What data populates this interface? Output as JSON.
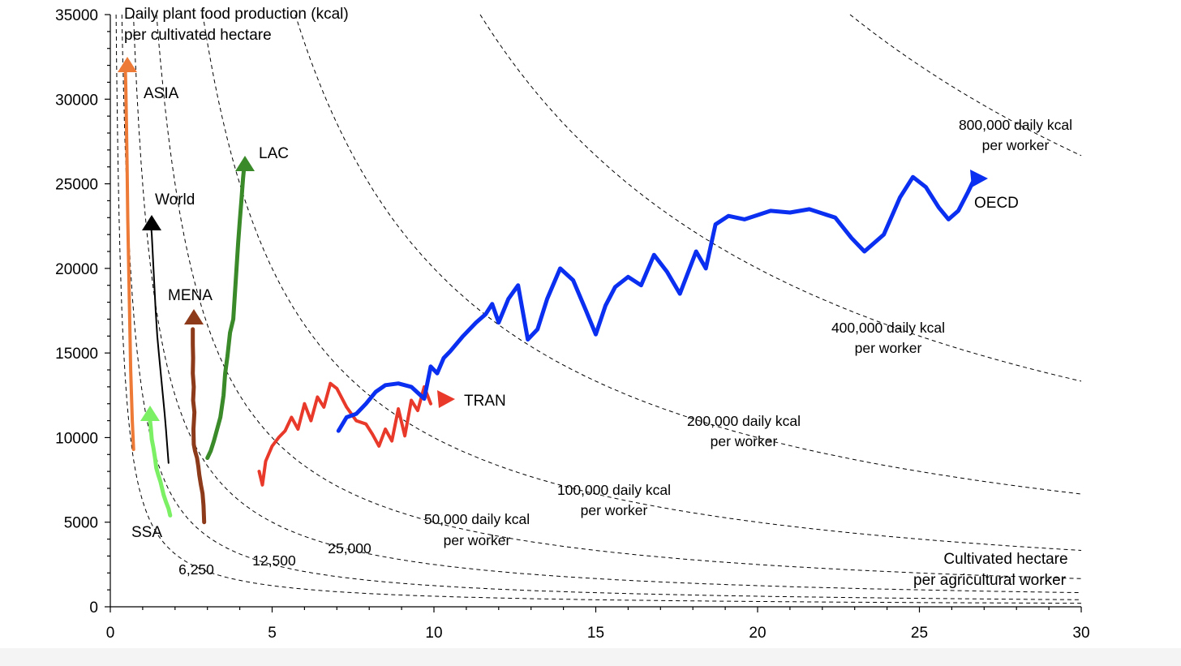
{
  "chart_data": {
    "type": "line",
    "title": "Daily plant food production (kcal)",
    "title_line2": "per cultivated hectare",
    "xlabel_line1": "Cultivated hectare",
    "xlabel_line2": "per agricultural worker",
    "xlim": [
      0,
      30
    ],
    "ylim": [
      0,
      35000
    ],
    "x_ticks": [
      0,
      5,
      10,
      15,
      20,
      25,
      30
    ],
    "y_ticks": [
      0,
      5000,
      10000,
      15000,
      20000,
      25000,
      30000,
      35000
    ],
    "x_tick_labels": [
      "0",
      "5",
      "10",
      "15",
      "20",
      "25",
      "30"
    ],
    "y_tick_labels": [
      "0",
      "5000",
      "10000",
      "15000",
      "20000",
      "25000",
      "30000",
      "35000"
    ],
    "grid": false,
    "isolines": [
      {
        "product": 6250,
        "label": "6,250"
      },
      {
        "product": 12500,
        "label": "12,500"
      },
      {
        "product": 25000,
        "label": "25,000"
      },
      {
        "product": 50000,
        "label": "50,000 daily kcal",
        "label2": "per worker"
      },
      {
        "product": 100000,
        "label": "100,000 daily kcal",
        "label2": "per worker"
      },
      {
        "product": 200000,
        "label": "200,000 daily kcal",
        "label2": "per worker"
      },
      {
        "product": 400000,
        "label": "400,000 daily kcal",
        "label2": "per worker"
      },
      {
        "product": 800000,
        "label": "800,000 daily kcal",
        "label2": "per worker"
      }
    ],
    "series": [
      {
        "name": "ASIA",
        "color": "#ee7a37",
        "points": [
          [
            0.72,
            9300
          ],
          [
            0.68,
            11000
          ],
          [
            0.63,
            14000
          ],
          [
            0.6,
            17000
          ],
          [
            0.57,
            20000
          ],
          [
            0.54,
            23000
          ],
          [
            0.52,
            26000
          ],
          [
            0.5,
            28500
          ],
          [
            0.48,
            30500
          ],
          [
            0.46,
            32000
          ]
        ]
      },
      {
        "name": "World",
        "color": "#000000",
        "points": [
          [
            1.8,
            8500
          ],
          [
            1.76,
            9500
          ],
          [
            1.72,
            10500
          ],
          [
            1.68,
            11400
          ],
          [
            1.64,
            12200
          ],
          [
            1.6,
            13000
          ],
          [
            1.55,
            14000
          ],
          [
            1.5,
            15000
          ],
          [
            1.45,
            16000
          ],
          [
            1.4,
            17500
          ],
          [
            1.36,
            19000
          ],
          [
            1.32,
            20500
          ],
          [
            1.28,
            22000
          ],
          [
            1.25,
            22700
          ]
        ]
      },
      {
        "name": "SSA",
        "color": "#7cf064",
        "points": [
          [
            1.85,
            5400
          ],
          [
            1.8,
            5800
          ],
          [
            1.72,
            6200
          ],
          [
            1.65,
            6600
          ],
          [
            1.6,
            7000
          ],
          [
            1.55,
            7400
          ],
          [
            1.48,
            7800
          ],
          [
            1.42,
            8200
          ],
          [
            1.38,
            8800
          ],
          [
            1.33,
            9400
          ],
          [
            1.28,
            9900
          ],
          [
            1.25,
            10600
          ],
          [
            1.22,
            11100
          ]
        ]
      },
      {
        "name": "MENA",
        "color": "#8c3a1a",
        "points": [
          [
            2.9,
            5000
          ],
          [
            2.88,
            6000
          ],
          [
            2.85,
            6700
          ],
          [
            2.8,
            7200
          ],
          [
            2.75,
            7800
          ],
          [
            2.72,
            8300
          ],
          [
            2.68,
            8800
          ],
          [
            2.62,
            9200
          ],
          [
            2.58,
            9600
          ],
          [
            2.57,
            10500
          ],
          [
            2.6,
            11500
          ],
          [
            2.56,
            12200
          ],
          [
            2.58,
            13000
          ],
          [
            2.55,
            13800
          ],
          [
            2.56,
            14700
          ],
          [
            2.55,
            15500
          ],
          [
            2.55,
            16400
          ]
        ]
      },
      {
        "name": "LAC",
        "color": "#3a8a2a",
        "points": [
          [
            3.0,
            8800
          ],
          [
            3.1,
            9200
          ],
          [
            3.2,
            9800
          ],
          [
            3.3,
            10500
          ],
          [
            3.4,
            11200
          ],
          [
            3.5,
            12500
          ],
          [
            3.55,
            13800
          ],
          [
            3.62,
            14800
          ],
          [
            3.7,
            16200
          ],
          [
            3.8,
            17000
          ],
          [
            3.85,
            18500
          ],
          [
            3.9,
            20000
          ],
          [
            3.95,
            21500
          ],
          [
            4.0,
            22800
          ],
          [
            4.05,
            24000
          ],
          [
            4.1,
            25300
          ],
          [
            4.13,
            25900
          ]
        ]
      },
      {
        "name": "TRAN",
        "color": "#e8392a",
        "points": [
          [
            4.6,
            8000
          ],
          [
            4.7,
            7200
          ],
          [
            4.8,
            8600
          ],
          [
            5.0,
            9500
          ],
          [
            5.2,
            10000
          ],
          [
            5.4,
            10400
          ],
          [
            5.6,
            11200
          ],
          [
            5.8,
            10500
          ],
          [
            6.0,
            12000
          ],
          [
            6.2,
            11000
          ],
          [
            6.4,
            12400
          ],
          [
            6.6,
            11800
          ],
          [
            6.8,
            13200
          ],
          [
            7.0,
            12900
          ],
          [
            7.3,
            11800
          ],
          [
            7.6,
            11000
          ],
          [
            7.9,
            10800
          ],
          [
            8.1,
            10200
          ],
          [
            8.3,
            9500
          ],
          [
            8.5,
            10500
          ],
          [
            8.7,
            9800
          ],
          [
            8.9,
            11700
          ],
          [
            9.1,
            10100
          ],
          [
            9.3,
            12200
          ],
          [
            9.5,
            11600
          ],
          [
            9.7,
            13000
          ],
          [
            9.9,
            12000
          ]
        ]
      },
      {
        "name": "OECD",
        "color": "#0a2ff0",
        "points": [
          [
            7.05,
            10400
          ],
          [
            7.3,
            11200
          ],
          [
            7.6,
            11400
          ],
          [
            7.9,
            12000
          ],
          [
            8.2,
            12700
          ],
          [
            8.5,
            13100
          ],
          [
            8.9,
            13200
          ],
          [
            9.3,
            13000
          ],
          [
            9.7,
            12300
          ],
          [
            9.9,
            14200
          ],
          [
            10.1,
            13800
          ],
          [
            10.3,
            14700
          ],
          [
            10.5,
            15100
          ],
          [
            10.9,
            16000
          ],
          [
            11.3,
            16800
          ],
          [
            11.6,
            17300
          ],
          [
            11.8,
            17900
          ],
          [
            12.0,
            16800
          ],
          [
            12.3,
            18200
          ],
          [
            12.6,
            19000
          ],
          [
            12.9,
            15800
          ],
          [
            13.2,
            16400
          ],
          [
            13.5,
            18200
          ],
          [
            13.9,
            20000
          ],
          [
            14.3,
            19300
          ],
          [
            14.7,
            17500
          ],
          [
            15.0,
            16100
          ],
          [
            15.3,
            17800
          ],
          [
            15.6,
            18900
          ],
          [
            16.0,
            19500
          ],
          [
            16.4,
            19000
          ],
          [
            16.8,
            20800
          ],
          [
            17.2,
            19800
          ],
          [
            17.6,
            18500
          ],
          [
            18.1,
            21000
          ],
          [
            18.4,
            20000
          ],
          [
            18.7,
            22600
          ],
          [
            19.1,
            23100
          ],
          [
            19.6,
            22900
          ],
          [
            20.4,
            23400
          ],
          [
            21.0,
            23300
          ],
          [
            21.6,
            23500
          ],
          [
            22.4,
            23000
          ],
          [
            22.9,
            21800
          ],
          [
            23.3,
            21000
          ],
          [
            23.9,
            22000
          ],
          [
            24.4,
            24200
          ],
          [
            24.8,
            25400
          ],
          [
            25.2,
            24800
          ],
          [
            25.6,
            23600
          ],
          [
            25.9,
            22900
          ],
          [
            26.2,
            23400
          ],
          [
            26.5,
            24500
          ],
          [
            26.65,
            25100
          ]
        ]
      }
    ]
  }
}
